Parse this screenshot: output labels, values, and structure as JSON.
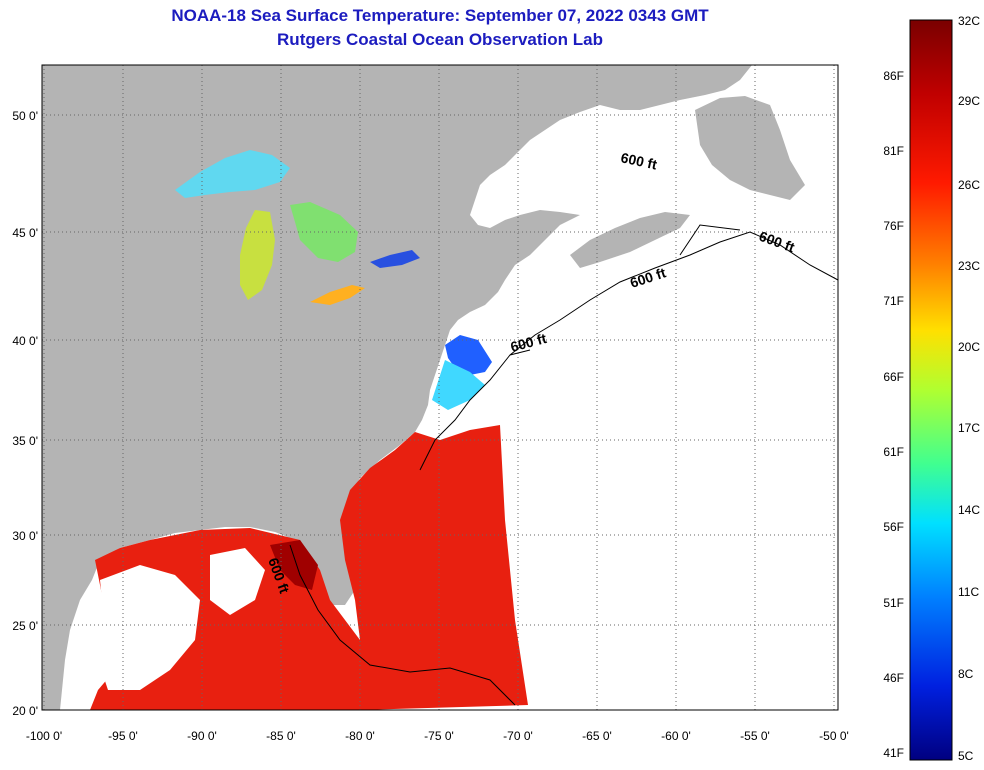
{
  "header": {
    "title": "NOAA-18 Sea Surface Temperature:  September 07, 2022 0343 GMT",
    "subtitle": "Rutgers Coastal Ocean Observation Lab"
  },
  "axes": {
    "lon_ticks": [
      "-100 0'",
      "-95 0'",
      "-90 0'",
      "-85 0'",
      "-80 0'",
      "-75 0'",
      "-70 0'",
      "-65 0'",
      "-60 0'",
      "-55 0'",
      "-50 0'"
    ],
    "lat_ticks": [
      "50 0'",
      "45 0'",
      "40 0'",
      "35 0'",
      "30 0'",
      "25 0'",
      "20 0'"
    ]
  },
  "contour_labels": [
    "600 ft",
    "600 ft",
    "600 ft",
    "600 ft",
    "600 ft"
  ],
  "colorbar": {
    "celsius": [
      "32C",
      "29C",
      "26C",
      "23C",
      "20C",
      "17C",
      "14C",
      "11C",
      "8C",
      "5C"
    ],
    "fahrenheit": [
      "86F",
      "81F",
      "76F",
      "71F",
      "66F",
      "61F",
      "56F",
      "51F",
      "46F",
      "41F"
    ],
    "colors": [
      "#7a0000",
      "#c00000",
      "#ff2000",
      "#ff8000",
      "#ffe000",
      "#c0ff20",
      "#40ff80",
      "#00e0ff",
      "#0080ff",
      "#0020ff",
      "#000080"
    ]
  },
  "colors": {
    "land": "#b4b4b4",
    "ocean_nodata": "#ffffff",
    "warm_sst": "#e82010",
    "title": "#1c1cbf"
  }
}
